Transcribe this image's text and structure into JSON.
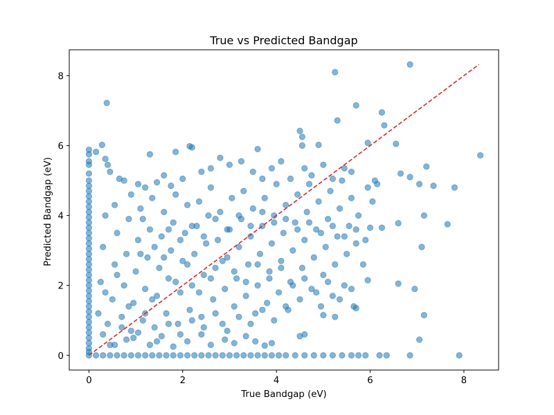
{
  "chart_data": {
    "type": "scatter",
    "title": "True vs Predicted Bandgap",
    "xlabel": "True Bandgap (eV)",
    "ylabel": "Predicted Bandgap (eV)",
    "xlim": [
      -0.42,
      8.74
    ],
    "ylim": [
      -0.42,
      8.74
    ],
    "xticks": [
      0,
      2,
      4,
      6,
      8
    ],
    "yticks": [
      0,
      2,
      4,
      6,
      8
    ],
    "xtick_labels": [
      "0",
      "2",
      "4",
      "6",
      "8"
    ],
    "ytick_labels": [
      "0",
      "2",
      "4",
      "6",
      "8"
    ],
    "grid": false,
    "legend": null,
    "colors": {
      "points": "#1f77b4",
      "reference_line": "#d62728"
    },
    "point_alpha": 0.55,
    "reference_line": {
      "style": "dashed",
      "from": [
        0,
        0
      ],
      "to": [
        8.32,
        8.32
      ]
    },
    "points": [
      [
        0,
        5.88
      ],
      [
        0,
        5.75
      ],
      [
        0,
        5.55
      ],
      [
        0,
        5.45
      ],
      [
        0,
        5.2
      ],
      [
        0,
        5.0
      ],
      [
        0,
        4.85
      ],
      [
        0,
        4.7
      ],
      [
        0,
        4.55
      ],
      [
        0,
        4.4
      ],
      [
        0,
        4.25
      ],
      [
        0,
        4.1
      ],
      [
        0,
        3.95
      ],
      [
        0,
        3.8
      ],
      [
        0,
        3.65
      ],
      [
        0,
        3.5
      ],
      [
        0,
        3.35
      ],
      [
        0,
        3.2
      ],
      [
        0,
        3.05
      ],
      [
        0,
        2.9
      ],
      [
        0,
        2.75
      ],
      [
        0,
        2.6
      ],
      [
        0,
        2.45
      ],
      [
        0,
        2.3
      ],
      [
        0,
        2.15
      ],
      [
        0,
        2.0
      ],
      [
        0,
        1.85
      ],
      [
        0,
        1.7
      ],
      [
        0,
        1.55
      ],
      [
        0,
        1.4
      ],
      [
        0,
        1.25
      ],
      [
        0,
        1.1
      ],
      [
        0,
        0.95
      ],
      [
        0,
        0.8
      ],
      [
        0,
        0.65
      ],
      [
        0,
        0.5
      ],
      [
        0,
        0.35
      ],
      [
        0,
        0.2
      ],
      [
        0,
        0.1
      ],
      [
        0,
        0
      ],
      [
        0.15,
        0
      ],
      [
        0.3,
        0
      ],
      [
        0.45,
        0
      ],
      [
        0.6,
        0
      ],
      [
        0.75,
        0
      ],
      [
        0.9,
        0
      ],
      [
        1.05,
        0
      ],
      [
        1.2,
        0
      ],
      [
        1.35,
        0
      ],
      [
        1.5,
        0
      ],
      [
        1.65,
        0
      ],
      [
        1.8,
        0
      ],
      [
        1.95,
        0
      ],
      [
        2.1,
        0
      ],
      [
        2.25,
        0
      ],
      [
        2.4,
        0
      ],
      [
        2.55,
        0
      ],
      [
        2.7,
        0
      ],
      [
        2.85,
        0
      ],
      [
        3.0,
        0
      ],
      [
        3.15,
        0
      ],
      [
        3.3,
        0
      ],
      [
        3.45,
        0
      ],
      [
        3.6,
        0
      ],
      [
        3.75,
        0
      ],
      [
        3.9,
        0
      ],
      [
        4.05,
        0
      ],
      [
        4.2,
        0
      ],
      [
        4.4,
        0
      ],
      [
        4.6,
        0
      ],
      [
        4.8,
        0
      ],
      [
        5.0,
        0
      ],
      [
        5.2,
        0
      ],
      [
        5.4,
        0
      ],
      [
        5.6,
        0
      ],
      [
        5.75,
        0
      ],
      [
        5.9,
        0
      ],
      [
        6.2,
        0
      ],
      [
        6.35,
        0
      ],
      [
        6.85,
        0
      ],
      [
        7.9,
        0
      ],
      [
        6.85,
        8.32
      ],
      [
        5.25,
        8.1
      ],
      [
        0.38,
        7.22
      ],
      [
        5.7,
        7.15
      ],
      [
        6.25,
        6.95
      ],
      [
        5.3,
        6.72
      ],
      [
        6.3,
        6.58
      ],
      [
        4.5,
        6.42
      ],
      [
        4.55,
        6.25
      ],
      [
        0.28,
        6.02
      ],
      [
        4.55,
        6.0
      ],
      [
        4.9,
        6.02
      ],
      [
        6.55,
        6.05
      ],
      [
        5.95,
        6.08
      ],
      [
        0.15,
        5.82
      ],
      [
        2.15,
        5.98
      ],
      [
        2.2,
        5.95
      ],
      [
        3.6,
        5.9
      ],
      [
        1.3,
        5.75
      ],
      [
        1.85,
        5.82
      ],
      [
        8.35,
        5.72
      ],
      [
        0.35,
        5.62
      ],
      [
        0.4,
        5.45
      ],
      [
        0.45,
        5.25
      ],
      [
        0.65,
        5.05
      ],
      [
        0.75,
        5.0
      ],
      [
        1.05,
        4.9
      ],
      [
        1.2,
        4.8
      ],
      [
        1.45,
        4.95
      ],
      [
        1.6,
        5.15
      ],
      [
        1.75,
        4.85
      ],
      [
        2.0,
        5.05
      ],
      [
        2.4,
        5.25
      ],
      [
        2.6,
        5.35
      ],
      [
        2.8,
        5.65
      ],
      [
        3.0,
        5.45
      ],
      [
        3.25,
        5.55
      ],
      [
        3.5,
        5.25
      ],
      [
        3.7,
        5.05
      ],
      [
        3.9,
        5.35
      ],
      [
        4.1,
        5.55
      ],
      [
        4.3,
        5.05
      ],
      [
        4.6,
        5.35
      ],
      [
        4.75,
        5.15
      ],
      [
        5.0,
        5.45
      ],
      [
        5.2,
        5.05
      ],
      [
        5.45,
        5.35
      ],
      [
        5.6,
        5.25
      ],
      [
        6.1,
        5.0
      ],
      [
        6.65,
        5.2
      ],
      [
        6.85,
        5.1
      ],
      [
        7.05,
        4.9
      ],
      [
        7.2,
        5.4
      ],
      [
        7.35,
        4.85
      ],
      [
        7.8,
        4.8
      ],
      [
        7.65,
        3.75
      ],
      [
        6.6,
        3.78
      ],
      [
        7.1,
        3.1
      ],
      [
        7.15,
        4.0
      ],
      [
        6.0,
        3.65
      ],
      [
        6.25,
        3.65
      ],
      [
        6.6,
        2.05
      ],
      [
        6.95,
        1.9
      ],
      [
        7.15,
        1.15
      ],
      [
        7.05,
        0.45
      ],
      [
        5.95,
        2.15
      ],
      [
        5.7,
        1.35
      ],
      [
        5.25,
        1.1
      ],
      [
        5.0,
        1.15
      ],
      [
        4.6,
        0.6
      ],
      [
        4.5,
        0.55
      ],
      [
        3.9,
        0.35
      ],
      [
        3.75,
        0.28
      ],
      [
        3.55,
        0.4
      ],
      [
        3.35,
        0.55
      ],
      [
        3.1,
        0.35
      ],
      [
        2.9,
        0.45
      ],
      [
        2.6,
        0.3
      ],
      [
        2.4,
        0.6
      ],
      [
        2.1,
        0.4
      ],
      [
        1.8,
        0.25
      ],
      [
        1.55,
        0.55
      ],
      [
        1.3,
        0.3
      ],
      [
        1.05,
        0.65
      ],
      [
        0.8,
        0.45
      ],
      [
        0.55,
        0.3
      ],
      [
        0.3,
        0.6
      ],
      [
        0.2,
        1.2
      ],
      [
        0.25,
        2.1
      ],
      [
        0.3,
        3.1
      ],
      [
        0.35,
        4.0
      ],
      [
        0.4,
        0.9
      ],
      [
        0.5,
        1.6
      ],
      [
        0.55,
        2.6
      ],
      [
        0.6,
        3.5
      ],
      [
        0.7,
        1.1
      ],
      [
        0.75,
        2.0
      ],
      [
        0.8,
        2.9
      ],
      [
        0.85,
        3.9
      ],
      [
        0.9,
        0.7
      ],
      [
        0.95,
        1.5
      ],
      [
        1.0,
        2.4
      ],
      [
        1.05,
        3.3
      ],
      [
        1.1,
        4.2
      ],
      [
        1.15,
        1.0
      ],
      [
        1.2,
        1.9
      ],
      [
        1.25,
        2.8
      ],
      [
        1.3,
        3.6
      ],
      [
        1.35,
        4.5
      ],
      [
        1.4,
        0.8
      ],
      [
        1.45,
        1.7
      ],
      [
        1.5,
        2.5
      ],
      [
        1.55,
        3.4
      ],
      [
        1.6,
        4.1
      ],
      [
        1.65,
        1.2
      ],
      [
        1.7,
        2.2
      ],
      [
        1.75,
        3.0
      ],
      [
        1.8,
        3.8
      ],
      [
        1.85,
        4.6
      ],
      [
        1.9,
        0.9
      ],
      [
        1.95,
        1.8
      ],
      [
        2.0,
        2.7
      ],
      [
        2.05,
        3.5
      ],
      [
        2.1,
        4.3
      ],
      [
        2.15,
        1.3
      ],
      [
        2.2,
        2.0
      ],
      [
        2.25,
        2.9
      ],
      [
        2.3,
        3.7
      ],
      [
        2.35,
        4.4
      ],
      [
        2.4,
        1.1
      ],
      [
        2.45,
        2.3
      ],
      [
        2.5,
        3.2
      ],
      [
        2.55,
        4.0
      ],
      [
        2.6,
        4.8
      ],
      [
        2.65,
        1.6
      ],
      [
        2.7,
        2.5
      ],
      [
        2.75,
        3.3
      ],
      [
        2.8,
        4.1
      ],
      [
        2.85,
        0.9
      ],
      [
        2.9,
        1.9
      ],
      [
        2.95,
        2.8
      ],
      [
        3.0,
        3.6
      ],
      [
        3.05,
        4.5
      ],
      [
        3.1,
        1.4
      ],
      [
        3.15,
        2.2
      ],
      [
        3.2,
        3.1
      ],
      [
        3.25,
        3.9
      ],
      [
        3.3,
        4.7
      ],
      [
        3.35,
        1.7
      ],
      [
        3.4,
        2.6
      ],
      [
        3.45,
        3.4
      ],
      [
        3.5,
        4.2
      ],
      [
        3.55,
        1.2
      ],
      [
        3.6,
        2.0
      ],
      [
        3.65,
        2.9
      ],
      [
        3.7,
        3.7
      ],
      [
        3.75,
        4.5
      ],
      [
        3.8,
        1.5
      ],
      [
        3.85,
        2.4
      ],
      [
        3.9,
        3.2
      ],
      [
        3.95,
        4.0
      ],
      [
        4.0,
        4.9
      ],
      [
        4.05,
        1.8
      ],
      [
        4.1,
        2.7
      ],
      [
        4.15,
        3.5
      ],
      [
        4.2,
        4.3
      ],
      [
        4.25,
        1.3
      ],
      [
        4.3,
        2.1
      ],
      [
        4.35,
        3.0
      ],
      [
        4.4,
        3.8
      ],
      [
        4.45,
        4.6
      ],
      [
        4.5,
        1.6
      ],
      [
        4.55,
        2.5
      ],
      [
        4.6,
        3.3
      ],
      [
        4.65,
        4.1
      ],
      [
        4.7,
        4.9
      ],
      [
        4.75,
        1.9
      ],
      [
        4.8,
        2.8
      ],
      [
        4.85,
        3.6
      ],
      [
        4.9,
        4.4
      ],
      [
        4.95,
        1.4
      ],
      [
        5.0,
        2.3
      ],
      [
        5.05,
        3.1
      ],
      [
        5.1,
        3.9
      ],
      [
        5.15,
        4.7
      ],
      [
        5.2,
        1.7
      ],
      [
        5.25,
        2.6
      ],
      [
        5.3,
        3.4
      ],
      [
        5.35,
        4.2
      ],
      [
        5.4,
        5.0
      ],
      [
        5.45,
        2.0
      ],
      [
        5.5,
        2.9
      ],
      [
        5.55,
        3.7
      ],
      [
        5.6,
        4.5
      ],
      [
        5.65,
        1.4
      ],
      [
        5.7,
        3.2
      ],
      [
        5.75,
        4.0
      ],
      [
        5.85,
        2.6
      ],
      [
        5.9,
        3.3
      ],
      [
        5.95,
        4.8
      ],
      [
        6.05,
        4.4
      ],
      [
        6.15,
        4.9
      ],
      [
        0.55,
        4.3
      ],
      [
        0.9,
        4.6
      ],
      [
        1.15,
        3.9
      ],
      [
        1.4,
        3.1
      ],
      [
        1.7,
        3.6
      ],
      [
        1.95,
        3.3
      ],
      [
        2.2,
        3.7
      ],
      [
        2.45,
        3.4
      ],
      [
        2.7,
        3.9
      ],
      [
        2.95,
        3.6
      ],
      [
        3.2,
        4.0
      ],
      [
        3.45,
        3.7
      ],
      [
        3.7,
        4.1
      ],
      [
        3.95,
        3.8
      ],
      [
        4.2,
        3.9
      ],
      [
        4.45,
        3.6
      ],
      [
        4.7,
        3.8
      ],
      [
        4.95,
        3.5
      ],
      [
        5.2,
        3.7
      ],
      [
        5.45,
        3.4
      ],
      [
        5.7,
        3.6
      ],
      [
        0.35,
        1.8
      ],
      [
        0.6,
        2.3
      ],
      [
        0.85,
        1.4
      ],
      [
        1.1,
        2.9
      ],
      [
        1.35,
        1.6
      ],
      [
        1.6,
        2.8
      ],
      [
        1.85,
        2.1
      ],
      [
        2.1,
        2.6
      ],
      [
        2.35,
        1.8
      ],
      [
        2.6,
        2.2
      ],
      [
        2.85,
        2.7
      ],
      [
        3.1,
        2.4
      ],
      [
        3.35,
        2.1
      ],
      [
        3.6,
        2.6
      ],
      [
        3.85,
        2.2
      ],
      [
        4.1,
        2.5
      ],
      [
        4.35,
        2.0
      ],
      [
        4.6,
        2.2
      ],
      [
        4.85,
        1.8
      ],
      [
        5.1,
        2.1
      ],
      [
        5.35,
        1.6
      ],
      [
        5.6,
        1.9
      ],
      [
        0.45,
        0.3
      ],
      [
        0.7,
        0.8
      ],
      [
        0.95,
        0.5
      ],
      [
        1.2,
        1.2
      ],
      [
        1.45,
        0.4
      ],
      [
        1.7,
        0.9
      ],
      [
        1.95,
        0.6
      ],
      [
        2.2,
        1.0
      ],
      [
        2.45,
        0.8
      ],
      [
        2.7,
        1.2
      ],
      [
        2.95,
        0.7
      ],
      [
        3.2,
        1.1
      ],
      [
        3.45,
        0.9
      ],
      [
        3.7,
        1.3
      ],
      [
        3.95,
        1.0
      ],
      [
        4.2,
        1.4
      ]
    ]
  }
}
